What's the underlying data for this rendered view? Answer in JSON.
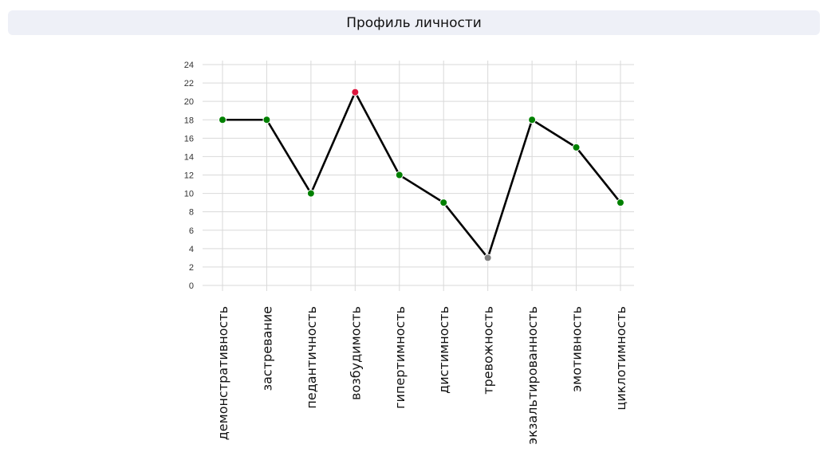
{
  "header": {
    "title": "Профиль личности"
  },
  "chart_data": {
    "type": "line",
    "title": "Профиль личности",
    "xlabel": "",
    "ylabel": "",
    "categories": [
      "демонстративность",
      "застревание",
      "педантичность",
      "возбудимость",
      "гипертимность",
      "дистимность",
      "тревожность",
      "экзальтированность",
      "эмотивность",
      "циклотимность"
    ],
    "series": [
      {
        "values": [
          18,
          18,
          10,
          21,
          12,
          9,
          3,
          18,
          15,
          9
        ],
        "point_colors": [
          "#008000",
          "#008000",
          "#008000",
          "#dc143c",
          "#008000",
          "#008000",
          "#808080",
          "#008000",
          "#008000",
          "#008000"
        ]
      }
    ],
    "ylim": [
      0,
      24
    ],
    "yticks": [
      0,
      2,
      4,
      6,
      8,
      10,
      12,
      14,
      16,
      18,
      20,
      22,
      24
    ],
    "grid": true,
    "legend": "none",
    "line_color": "#000000"
  }
}
